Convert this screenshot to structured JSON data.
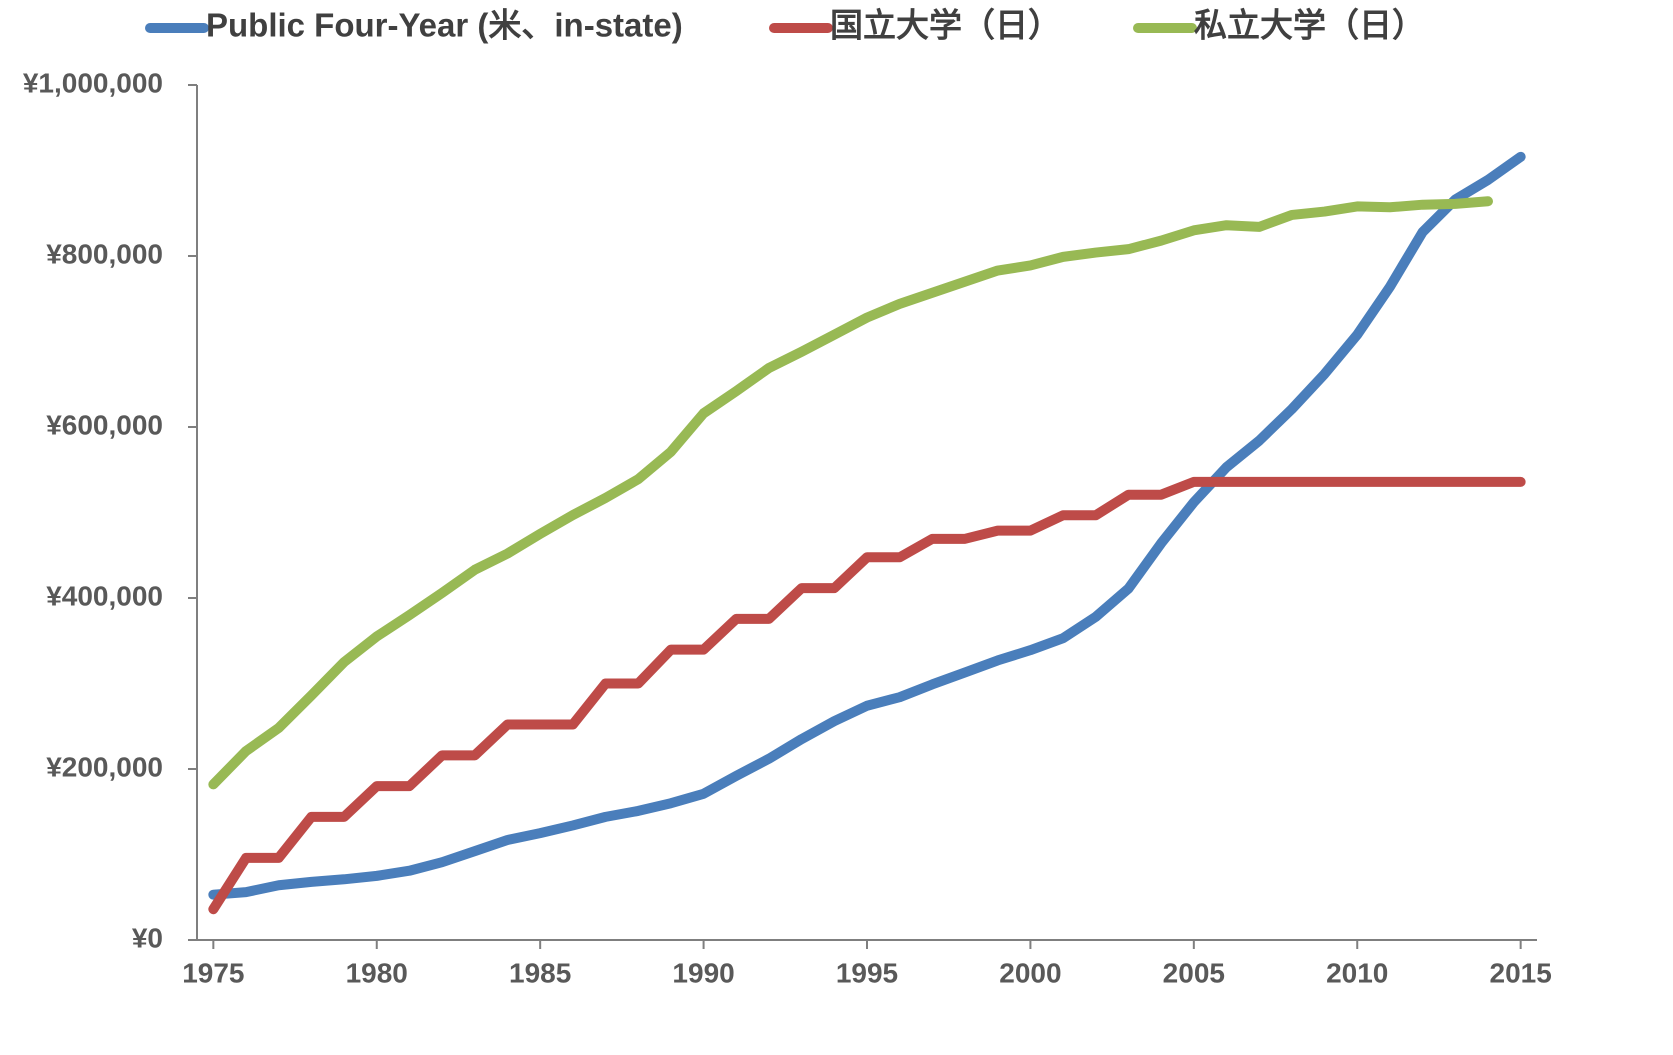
{
  "chart_data": {
    "type": "line",
    "x": [
      1975,
      1976,
      1977,
      1978,
      1979,
      1980,
      1981,
      1982,
      1983,
      1984,
      1985,
      1986,
      1987,
      1988,
      1989,
      1990,
      1991,
      1992,
      1993,
      1994,
      1995,
      1996,
      1997,
      1998,
      1999,
      2000,
      2001,
      2002,
      2003,
      2004,
      2005,
      2006,
      2007,
      2008,
      2009,
      2010,
      2011,
      2012,
      2013,
      2014,
      2015
    ],
    "series": [
      {
        "name": "Public Four-Year (米、in-state)",
        "color": "#4a7ebb",
        "values": [
          53000,
          56000,
          64000,
          68000,
          71000,
          75000,
          81000,
          91000,
          104000,
          117000,
          125000,
          134000,
          144000,
          151000,
          160000,
          171000,
          192000,
          212000,
          235000,
          256000,
          274000,
          284000,
          299000,
          313000,
          327000,
          339000,
          353000,
          378000,
          411000,
          464000,
          512000,
          553000,
          584000,
          621000,
          662000,
          708000,
          764000,
          828000,
          866000,
          889000,
          916000
        ]
      },
      {
        "name": "国立大学（日）",
        "color": "#be4b48",
        "values": [
          36000,
          96000,
          96000,
          144000,
          144000,
          180000,
          180000,
          216000,
          216000,
          252000,
          252000,
          252000,
          300000,
          300000,
          339600,
          339600,
          375600,
          375600,
          411600,
          411600,
          447600,
          447600,
          469200,
          469200,
          478800,
          478800,
          496800,
          496800,
          520800,
          520800,
          535800,
          535800,
          535800,
          535800,
          535800,
          535800,
          535800,
          535800,
          535800,
          535800,
          535800
        ]
      },
      {
        "name": "私立大学（日）",
        "color": "#98b954",
        "values": [
          182000,
          221000,
          248000,
          286000,
          325000,
          355000,
          380000,
          406000,
          433000,
          452000,
          475000,
          497000,
          517000,
          539000,
          571000,
          616000,
          642000,
          669000,
          688000,
          708000,
          728000,
          744000,
          757000,
          770000,
          783000,
          789000,
          799000,
          804000,
          808000,
          818000,
          830000,
          836000,
          834000,
          848000,
          852000,
          858000,
          857000,
          860000,
          861000,
          864000,
          null
        ]
      }
    ],
    "xlim": [
      1974.5,
      2015.5
    ],
    "xticks": [
      1975,
      1980,
      1985,
      1990,
      1995,
      2000,
      2005,
      2010,
      2015
    ],
    "ylim": [
      0,
      1000000
    ],
    "yticks": [
      {
        "value": 0,
        "label": "¥0"
      },
      {
        "value": 200000,
        "label": "¥200,000"
      },
      {
        "value": 400000,
        "label": "¥400,000"
      },
      {
        "value": 600000,
        "label": "¥600,000"
      },
      {
        "value": 800000,
        "label": "¥800,000"
      },
      {
        "value": 1000000,
        "label": "¥1,000,000"
      }
    ],
    "legend": "top"
  }
}
